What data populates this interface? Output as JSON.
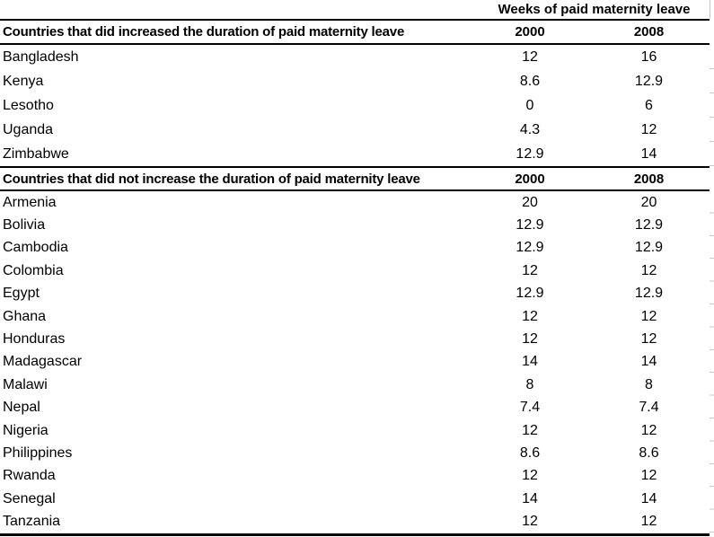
{
  "chart_data": {
    "type": "table",
    "title": "Weeks of paid maternity leave",
    "columns": [
      "2000",
      "2008"
    ],
    "sections": [
      {
        "header": "Countries that did increased the duration of paid maternity leave",
        "column_headers": [
          "2000",
          "2008"
        ],
        "rows": [
          {
            "country": "Bangladesh",
            "values": [
              "12",
              "16"
            ]
          },
          {
            "country": "Kenya",
            "values": [
              "8.6",
              "12.9"
            ]
          },
          {
            "country": "Lesotho",
            "values": [
              "0",
              "6"
            ]
          },
          {
            "country": "Uganda",
            "values": [
              "4.3",
              "12"
            ]
          },
          {
            "country": "Zimbabwe",
            "values": [
              "12.9",
              "14"
            ]
          }
        ]
      },
      {
        "header": "Countries that did not increase the duration of paid maternity leave",
        "column_headers": [
          "2000",
          "2008"
        ],
        "rows": [
          {
            "country": "Armenia",
            "values": [
              "20",
              "20"
            ]
          },
          {
            "country": "Bolivia",
            "values": [
              "12.9",
              "12.9"
            ]
          },
          {
            "country": "Cambodia",
            "values": [
              "12.9",
              "12.9"
            ]
          },
          {
            "country": "Colombia",
            "values": [
              "12",
              "12"
            ]
          },
          {
            "country": "Egypt",
            "values": [
              "12.9",
              "12.9"
            ]
          },
          {
            "country": "Ghana",
            "values": [
              "12",
              "12"
            ]
          },
          {
            "country": "Honduras",
            "values": [
              "12",
              "12"
            ]
          },
          {
            "country": "Madagascar",
            "values": [
              "14",
              "14"
            ]
          },
          {
            "country": "Malawi",
            "values": [
              "8",
              "8"
            ]
          },
          {
            "country": "Nepal",
            "values": [
              "7.4",
              "7.4"
            ]
          },
          {
            "country": "Nigeria",
            "values": [
              "12",
              "12"
            ]
          },
          {
            "country": "Philippines",
            "values": [
              "8.6",
              "8.6"
            ]
          },
          {
            "country": "Rwanda",
            "values": [
              "12",
              "12"
            ]
          },
          {
            "country": "Senegal",
            "values": [
              "14",
              "14"
            ]
          },
          {
            "country": "Tanzania",
            "values": [
              "12",
              "12"
            ]
          }
        ]
      }
    ]
  },
  "colors": {
    "text": "#000000",
    "rule": "#000000",
    "background": "#ffffff",
    "gridline_stub": "#c9c9c9"
  }
}
